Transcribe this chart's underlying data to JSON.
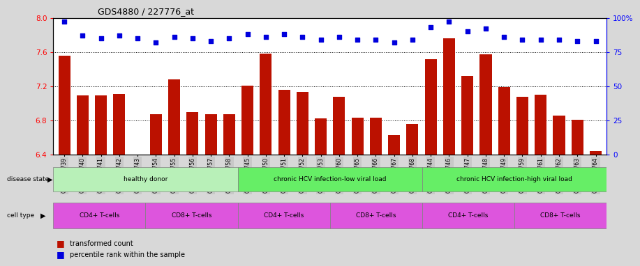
{
  "title": "GDS4880 / 227776_at",
  "samples": [
    "GSM1210739",
    "GSM1210740",
    "GSM1210741",
    "GSM1210742",
    "GSM1210743",
    "GSM1210754",
    "GSM1210755",
    "GSM1210756",
    "GSM1210757",
    "GSM1210758",
    "GSM1210745",
    "GSM1210750",
    "GSM1210751",
    "GSM1210752",
    "GSM1210753",
    "GSM1210760",
    "GSM1210765",
    "GSM1210766",
    "GSM1210767",
    "GSM1210768",
    "GSM1210744",
    "GSM1210746",
    "GSM1210747",
    "GSM1210748",
    "GSM1210749",
    "GSM1210759",
    "GSM1210761",
    "GSM1210762",
    "GSM1210763",
    "GSM1210764"
  ],
  "bar_values": [
    7.56,
    7.09,
    7.09,
    7.11,
    6.4,
    6.87,
    7.28,
    6.9,
    6.87,
    6.87,
    7.21,
    7.58,
    7.16,
    7.13,
    6.82,
    7.08,
    6.83,
    6.83,
    6.63,
    6.76,
    7.52,
    7.76,
    7.32,
    7.57,
    7.19,
    7.08,
    7.1,
    6.86,
    6.81,
    6.44
  ],
  "percentile_values": [
    97,
    87,
    85,
    87,
    85,
    82,
    86,
    85,
    83,
    85,
    88,
    86,
    88,
    86,
    84,
    86,
    84,
    84,
    82,
    84,
    93,
    97,
    90,
    92,
    86,
    84,
    84,
    84,
    83,
    83
  ],
  "ymin": 6.4,
  "ymax": 8.0,
  "yticks_left": [
    6.4,
    6.8,
    7.2,
    7.6,
    8.0
  ],
  "yticks_right": [
    0,
    25,
    50,
    75,
    100
  ],
  "grid_lines": [
    6.8,
    7.2,
    7.6
  ],
  "bar_color": "#bb1100",
  "dot_color": "#0000dd",
  "fig_bg": "#d8d8d8",
  "plot_bg": "#ffffff",
  "ticklabel_bg": "#c8c8c8",
  "ds_colors": [
    "#a0e8a0",
    "#58e858",
    "#58e858"
  ],
  "ct_colors_cd4": "#dd66dd",
  "ct_colors_cd8": "#dd66dd",
  "ds_labels": [
    "healthy donor",
    "chronic HCV infection-low viral load",
    "chronic HCV infection-high viral load"
  ],
  "ds_ranges": [
    [
      0,
      9
    ],
    [
      10,
      19
    ],
    [
      20,
      29
    ]
  ],
  "ct_labels": [
    "CD4+ T-cells",
    "CD8+ T-cells",
    "CD4+ T-cells",
    "CD8+ T-cells",
    "CD4+ T-cells",
    "CD8+ T-cells"
  ],
  "ct_ranges": [
    [
      0,
      4
    ],
    [
      5,
      9
    ],
    [
      10,
      14
    ],
    [
      15,
      19
    ],
    [
      20,
      24
    ],
    [
      25,
      29
    ]
  ]
}
